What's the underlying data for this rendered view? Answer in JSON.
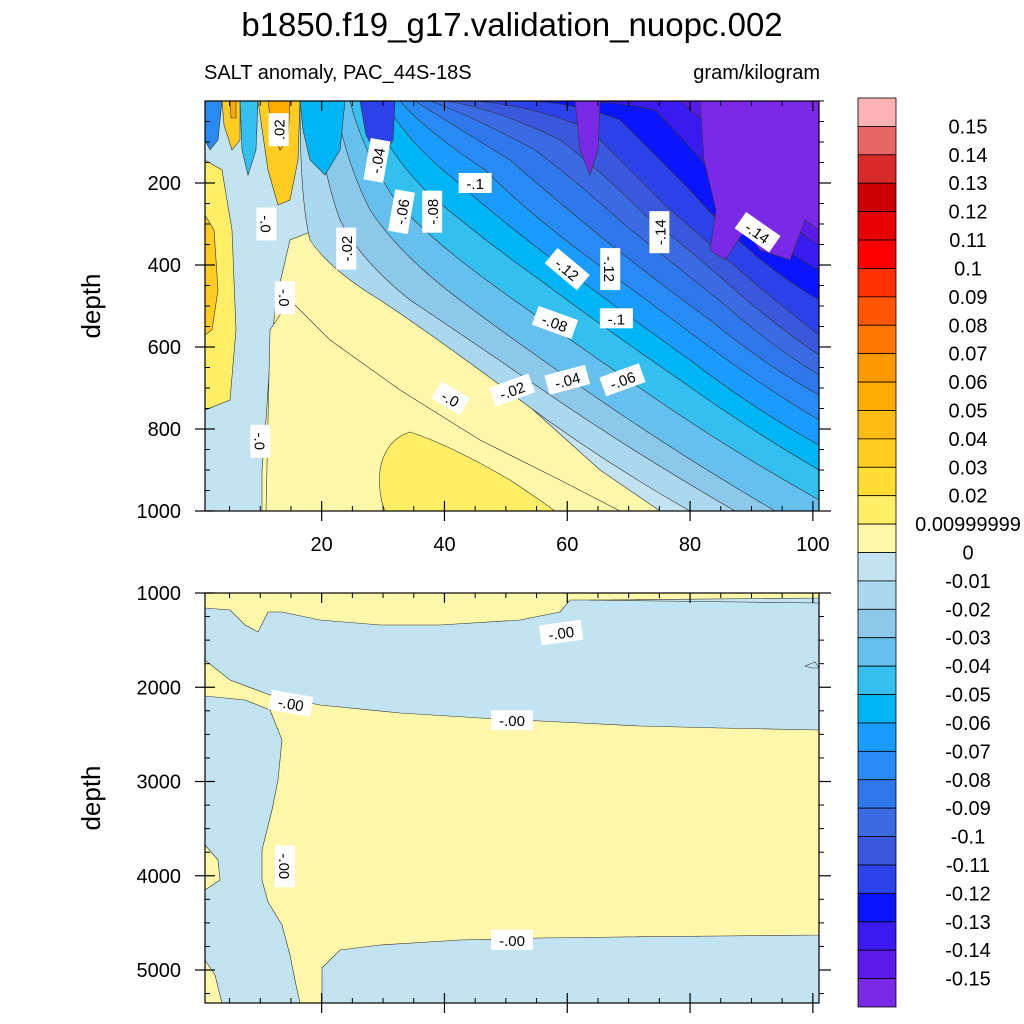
{
  "header": {
    "title": "b1850.f19_g17.validation_nuopc.002",
    "subtitle_left": "SALT anomaly, PAC_44S-18S",
    "subtitle_right": "gram/kilogram"
  },
  "colors": {
    "pos": [
      "#ffb3b3",
      "#e86666",
      "#d92a2a",
      "#cc0000",
      "#e60000",
      "#ff0000",
      "#ff3300",
      "#ff5500",
      "#ff7700",
      "#ff9900",
      "#ffaa00",
      "#ffbb11",
      "#ffcc22",
      "#ffdd33",
      "#ffee66",
      "#fff8aa"
    ],
    "neg": [
      "#c2e4f2",
      "#aad8ee",
      "#8cc8ea",
      "#66c0ee",
      "#33bff0",
      "#00b5f5",
      "#1a9cff",
      "#2a8af5",
      "#2f78ec",
      "#3a6be2",
      "#3a58dc",
      "#2a42e8",
      "#0a14ff",
      "#3a1af0",
      "#5a1ae8",
      "#7a2ae6"
    ]
  },
  "chart_data": [
    {
      "type": "heatmap",
      "panel": "upper",
      "title": "SALT anomaly, PAC_44S-18S",
      "units": "gram/kilogram",
      "xlabel": "",
      "ylabel": "depth",
      "xlim": [
        1,
        101
      ],
      "ylim": [
        1000,
        0
      ],
      "x_ticks": [
        20,
        40,
        60,
        80,
        100
      ],
      "y_ticks": [
        200,
        400,
        600,
        800,
        1000
      ],
      "contour_labels": [
        {
          "text": ".02",
          "x": 13,
          "y": 70,
          "rot": -90
        },
        {
          "text": "-.04",
          "x": 29,
          "y": 145,
          "rot": -80
        },
        {
          "text": "-.1",
          "x": 45,
          "y": 200,
          "rot": 0
        },
        {
          "text": "-.06",
          "x": 33,
          "y": 270,
          "rot": -80
        },
        {
          "text": "-.08",
          "x": 38,
          "y": 270,
          "rot": -90
        },
        {
          "text": "-.0",
          "x": 11,
          "y": 300,
          "rot": 90
        },
        {
          "text": "-.14",
          "x": 75,
          "y": 320,
          "rot": -90
        },
        {
          "text": "-.14",
          "x": 91,
          "y": 320,
          "rot": 35
        },
        {
          "text": "-.02",
          "x": 24,
          "y": 360,
          "rot": -90
        },
        {
          "text": "-.12",
          "x": 60,
          "y": 410,
          "rot": 40
        },
        {
          "text": "-.12",
          "x": 67,
          "y": 410,
          "rot": 90
        },
        {
          "text": "-.0",
          "x": 14,
          "y": 480,
          "rot": 90
        },
        {
          "text": "-.1",
          "x": 68,
          "y": 530,
          "rot": 0
        },
        {
          "text": "-.08",
          "x": 58,
          "y": 540,
          "rot": 20
        },
        {
          "text": "-.06",
          "x": 69,
          "y": 680,
          "rot": -20
        },
        {
          "text": "-.04",
          "x": 60,
          "y": 680,
          "rot": -15
        },
        {
          "text": "-.02",
          "x": 51,
          "y": 705,
          "rot": -20
        },
        {
          "text": "-.0",
          "x": 41,
          "y": 725,
          "rot": 30
        },
        {
          "text": "-.0",
          "x": 10,
          "y": 830,
          "rot": 90
        }
      ]
    },
    {
      "type": "heatmap",
      "panel": "lower",
      "xlabel": "",
      "ylabel": "depth",
      "xlim": [
        1,
        101
      ],
      "ylim": [
        5350,
        1000
      ],
      "x_ticks": [
        20,
        40,
        60,
        80,
        100
      ],
      "y_ticks": [
        1000,
        2000,
        3000,
        4000,
        5000
      ],
      "contour_labels": [
        {
          "text": "-.00",
          "x": 59,
          "y": 1420,
          "rot": -8
        },
        {
          "text": "-.00",
          "x": 15,
          "y": 2170,
          "rot": 10
        },
        {
          "text": "-.00",
          "x": 51,
          "y": 2350,
          "rot": 0
        },
        {
          "text": "-.00",
          "x": 14,
          "y": 3900,
          "rot": 90
        },
        {
          "text": "-.00",
          "x": 51,
          "y": 4680,
          "rot": 0
        }
      ]
    }
  ],
  "colorbar": {
    "labels": [
      "0.15",
      "0.14",
      "0.13",
      "0.12",
      "0.11",
      "0.1",
      "0.09",
      "0.08",
      "0.07",
      "0.06",
      "0.05",
      "0.04",
      "0.03",
      "0.02",
      "0.00999999",
      "0",
      "-0.01",
      "-0.02",
      "-0.03",
      "-0.04",
      "-0.05",
      "-0.06",
      "-0.07",
      "-0.08",
      "-0.09",
      "-0.1",
      "-0.11",
      "-0.12",
      "-0.13",
      "-0.14",
      "-0.15"
    ]
  }
}
